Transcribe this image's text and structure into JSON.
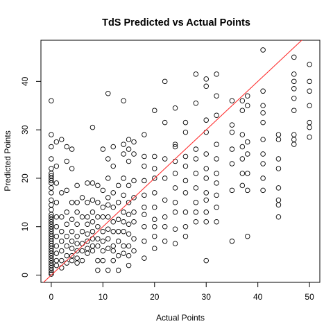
{
  "chart_data": {
    "type": "scatter",
    "title": "TdS Predicted vs Actual Points",
    "xlabel": "Actual Points",
    "ylabel": "Predicted Points",
    "xlim": [
      -2,
      52
    ],
    "ylim": [
      -1.5,
      48.5
    ],
    "x_ticks": [
      0,
      10,
      20,
      30,
      40,
      50
    ],
    "y_ticks": [
      0,
      10,
      20,
      30,
      40
    ],
    "grid": false,
    "legend": "none",
    "point_style": "open-circle",
    "point_color": "#000000",
    "reference_line": {
      "intercept": 0,
      "slope": 1,
      "color": "#ff3030"
    },
    "points": [
      [
        0,
        36
      ],
      [
        0,
        29
      ],
      [
        0,
        26.5
      ],
      [
        0,
        24
      ],
      [
        0,
        22
      ],
      [
        0,
        21
      ],
      [
        0,
        20.5
      ],
      [
        0,
        20
      ],
      [
        0,
        19.5
      ],
      [
        0,
        19
      ],
      [
        0,
        18
      ],
      [
        0,
        17
      ],
      [
        0,
        15.5
      ],
      [
        0,
        14.5
      ],
      [
        0,
        13.5
      ],
      [
        0,
        12.5
      ],
      [
        0,
        12
      ],
      [
        0,
        11.5
      ],
      [
        0,
        11
      ],
      [
        0,
        10.5
      ],
      [
        0,
        10
      ],
      [
        0,
        9.5
      ],
      [
        0,
        9
      ],
      [
        0,
        8.5
      ],
      [
        0,
        8
      ],
      [
        0,
        7.5
      ],
      [
        0,
        7
      ],
      [
        0,
        6.5
      ],
      [
        0,
        6
      ],
      [
        0,
        5.5
      ],
      [
        0,
        5
      ],
      [
        0,
        4.5
      ],
      [
        0,
        4
      ],
      [
        0,
        3.5
      ],
      [
        0,
        3
      ],
      [
        0,
        2.5
      ],
      [
        0,
        2
      ],
      [
        0,
        1.5
      ],
      [
        0,
        1
      ],
      [
        0,
        0.5
      ],
      [
        0,
        0.2
      ],
      [
        1,
        27.5
      ],
      [
        1,
        22.5
      ],
      [
        1,
        19
      ],
      [
        1,
        15
      ],
      [
        1,
        12
      ],
      [
        1,
        10
      ],
      [
        1,
        8
      ],
      [
        1,
        6
      ],
      [
        1,
        4.5
      ],
      [
        1,
        3
      ],
      [
        1,
        2
      ],
      [
        2,
        28
      ],
      [
        2,
        17
      ],
      [
        2,
        12
      ],
      [
        2,
        9
      ],
      [
        2,
        7
      ],
      [
        2,
        5
      ],
      [
        2,
        3
      ],
      [
        2,
        1.5
      ],
      [
        3,
        26.5
      ],
      [
        3,
        23.5
      ],
      [
        3,
        17.5
      ],
      [
        3,
        13
      ],
      [
        3,
        10.5
      ],
      [
        3,
        8
      ],
      [
        3,
        6
      ],
      [
        3,
        4
      ],
      [
        3,
        2.5
      ],
      [
        4,
        26
      ],
      [
        4,
        22
      ],
      [
        4,
        15
      ],
      [
        4,
        11.5
      ],
      [
        4,
        9
      ],
      [
        4,
        7
      ],
      [
        4,
        5.5
      ],
      [
        4,
        4
      ],
      [
        4,
        3
      ],
      [
        5,
        18.5
      ],
      [
        5,
        15
      ],
      [
        5,
        13
      ],
      [
        5,
        10.5
      ],
      [
        5,
        8
      ],
      [
        5,
        6.5
      ],
      [
        5,
        5
      ],
      [
        5,
        3.5
      ],
      [
        5,
        2.5
      ],
      [
        6,
        16
      ],
      [
        6,
        12
      ],
      [
        6,
        9
      ],
      [
        6,
        6.5
      ],
      [
        6,
        5
      ],
      [
        6,
        3
      ],
      [
        7,
        19
      ],
      [
        7,
        15
      ],
      [
        7,
        12
      ],
      [
        7,
        10.5
      ],
      [
        7,
        8.5
      ],
      [
        7,
        7
      ],
      [
        7,
        5.5
      ],
      [
        7,
        4.5
      ],
      [
        8,
        30.5
      ],
      [
        8,
        19
      ],
      [
        8,
        15.5
      ],
      [
        8,
        13
      ],
      [
        8,
        11
      ],
      [
        8,
        9
      ],
      [
        8,
        7.5
      ],
      [
        8,
        6
      ],
      [
        8,
        5
      ],
      [
        9,
        18.5
      ],
      [
        9,
        15
      ],
      [
        9,
        12
      ],
      [
        9,
        10
      ],
      [
        9,
        7.5
      ],
      [
        9,
        6
      ],
      [
        9,
        3
      ],
      [
        9,
        1
      ],
      [
        10,
        26
      ],
      [
        10,
        17.5
      ],
      [
        10,
        14
      ],
      [
        10,
        12
      ],
      [
        10,
        9
      ],
      [
        10,
        7
      ],
      [
        10,
        5
      ],
      [
        10,
        3
      ],
      [
        11,
        37.5
      ],
      [
        11,
        24
      ],
      [
        11,
        20
      ],
      [
        11,
        16
      ],
      [
        11,
        14.5
      ],
      [
        11,
        12
      ],
      [
        11,
        9.5
      ],
      [
        11,
        7.5
      ],
      [
        11,
        5.5
      ],
      [
        11,
        1
      ],
      [
        12,
        26.5
      ],
      [
        12,
        22.5
      ],
      [
        12,
        17
      ],
      [
        12,
        14
      ],
      [
        12,
        11
      ],
      [
        12,
        9
      ],
      [
        12,
        6
      ],
      [
        12,
        5
      ],
      [
        12,
        3
      ],
      [
        13,
        18.5
      ],
      [
        13,
        15
      ],
      [
        13,
        11.5
      ],
      [
        13,
        9
      ],
      [
        13,
        7
      ],
      [
        13,
        4
      ],
      [
        13,
        1
      ],
      [
        14,
        36
      ],
      [
        14,
        27
      ],
      [
        14,
        25
      ],
      [
        14,
        20
      ],
      [
        14,
        16.5
      ],
      [
        14,
        13
      ],
      [
        14,
        11
      ],
      [
        14,
        9
      ],
      [
        14,
        6
      ],
      [
        14,
        4.5
      ],
      [
        15,
        28
      ],
      [
        15,
        26
      ],
      [
        15,
        23.5
      ],
      [
        15,
        18.5
      ],
      [
        15,
        15
      ],
      [
        15,
        12.5
      ],
      [
        15,
        10.5
      ],
      [
        15,
        8.5
      ],
      [
        15,
        6
      ],
      [
        15,
        4
      ],
      [
        15,
        2
      ],
      [
        16,
        27.5
      ],
      [
        16,
        25
      ],
      [
        16,
        19.5
      ],
      [
        16,
        16
      ],
      [
        16,
        13
      ],
      [
        16,
        11
      ],
      [
        16,
        7.5
      ],
      [
        16,
        5
      ],
      [
        18,
        29
      ],
      [
        18,
        24.5
      ],
      [
        18,
        22.5
      ],
      [
        18,
        19.5
      ],
      [
        18,
        16.5
      ],
      [
        18,
        14
      ],
      [
        18,
        12.5
      ],
      [
        18,
        10
      ],
      [
        18,
        7
      ],
      [
        18,
        3.5
      ],
      [
        20,
        34
      ],
      [
        20,
        24.5
      ],
      [
        20,
        22
      ],
      [
        20,
        20
      ],
      [
        20,
        17
      ],
      [
        20,
        14
      ],
      [
        20,
        11.5
      ],
      [
        20,
        10
      ],
      [
        20,
        8
      ],
      [
        20,
        5.5
      ],
      [
        22,
        40
      ],
      [
        22,
        31.5
      ],
      [
        22,
        24
      ],
      [
        22,
        20
      ],
      [
        22,
        15.5
      ],
      [
        22,
        12
      ],
      [
        22,
        10
      ],
      [
        22,
        7
      ],
      [
        24,
        34.5
      ],
      [
        24,
        27
      ],
      [
        24,
        26.5
      ],
      [
        24,
        23.5
      ],
      [
        24,
        21
      ],
      [
        24,
        18
      ],
      [
        24,
        15
      ],
      [
        24,
        13
      ],
      [
        24,
        9.5
      ],
      [
        24,
        6.5
      ],
      [
        26,
        31.5
      ],
      [
        26,
        29.5
      ],
      [
        26,
        24.5
      ],
      [
        26,
        22.5
      ],
      [
        26,
        19.5
      ],
      [
        26,
        17
      ],
      [
        26,
        13
      ],
      [
        26,
        10
      ],
      [
        26,
        8
      ],
      [
        28,
        41.5
      ],
      [
        28,
        35.5
      ],
      [
        28,
        26
      ],
      [
        28,
        24
      ],
      [
        28,
        21
      ],
      [
        28,
        18
      ],
      [
        28,
        15
      ],
      [
        28,
        13
      ],
      [
        28,
        11
      ],
      [
        30,
        40.5
      ],
      [
        30,
        39
      ],
      [
        30,
        32
      ],
      [
        30,
        29.5
      ],
      [
        30,
        25
      ],
      [
        30,
        22
      ],
      [
        30,
        20
      ],
      [
        30,
        17
      ],
      [
        30,
        15.5
      ],
      [
        30,
        13
      ],
      [
        30,
        11
      ],
      [
        30,
        3
      ],
      [
        32,
        41.5
      ],
      [
        32,
        37
      ],
      [
        32,
        33
      ],
      [
        32,
        27
      ],
      [
        32,
        24
      ],
      [
        32,
        21
      ],
      [
        32,
        19
      ],
      [
        32,
        16.5
      ],
      [
        32,
        14
      ],
      [
        32,
        11
      ],
      [
        35,
        36
      ],
      [
        35,
        31
      ],
      [
        35,
        29.5
      ],
      [
        35,
        26
      ],
      [
        35,
        23
      ],
      [
        35,
        17.5
      ],
      [
        35,
        7
      ],
      [
        37,
        36
      ],
      [
        37,
        34
      ],
      [
        37,
        29
      ],
      [
        37,
        26.5
      ],
      [
        37,
        24
      ],
      [
        37,
        21
      ],
      [
        37,
        18.5
      ],
      [
        38,
        37
      ],
      [
        38,
        35
      ],
      [
        38,
        27.5
      ],
      [
        38,
        25
      ],
      [
        38,
        21
      ],
      [
        38,
        17.5
      ],
      [
        38,
        8
      ],
      [
        41,
        46.5
      ],
      [
        41,
        38
      ],
      [
        41,
        35
      ],
      [
        41,
        33.5
      ],
      [
        41,
        31.5
      ],
      [
        41,
        28
      ],
      [
        41,
        25
      ],
      [
        41,
        23
      ],
      [
        41,
        20
      ],
      [
        41,
        17.5
      ],
      [
        44,
        29
      ],
      [
        44,
        28
      ],
      [
        44,
        24
      ],
      [
        44,
        22
      ],
      [
        44,
        18
      ],
      [
        44,
        15.5
      ],
      [
        44,
        14.5
      ],
      [
        44,
        12
      ],
      [
        47,
        45
      ],
      [
        47,
        41.5
      ],
      [
        47,
        40
      ],
      [
        47,
        38.5
      ],
      [
        47,
        36.5
      ],
      [
        47,
        34
      ],
      [
        47,
        29
      ],
      [
        47,
        28
      ],
      [
        47,
        27
      ],
      [
        50,
        43.5
      ],
      [
        50,
        40
      ],
      [
        50,
        38
      ],
      [
        50,
        35
      ],
      [
        50,
        31.5
      ],
      [
        50,
        30.5
      ],
      [
        50,
        28.5
      ]
    ]
  }
}
